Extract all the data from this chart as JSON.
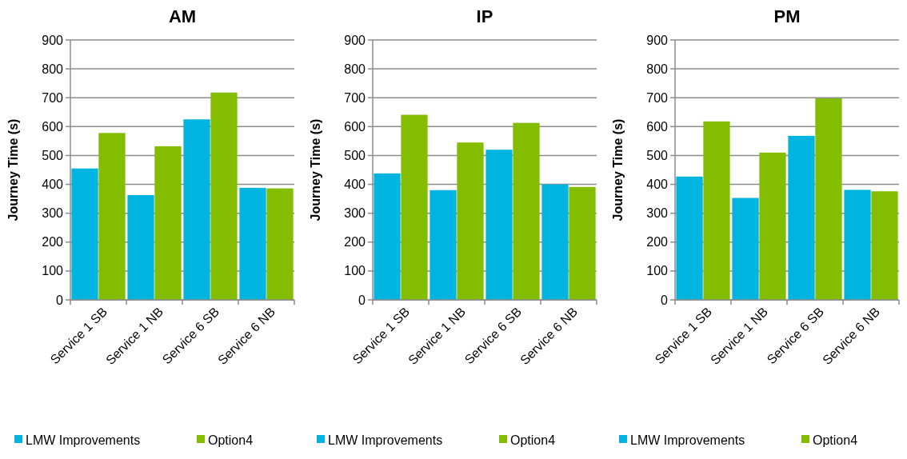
{
  "chart_data": [
    {
      "type": "bar",
      "title": "AM",
      "ylabel": "Journey Time (s)",
      "categories": [
        "Service 1 SB",
        "Service 1 NB",
        "Service 6 SB",
        "Service 6 NB"
      ],
      "series": [
        {
          "name": "LMW Improvements",
          "color": "#00b4e0",
          "values": [
            455,
            363,
            625,
            388
          ]
        },
        {
          "name": "Option4",
          "color": "#84bc00",
          "values": [
            578,
            532,
            718,
            386
          ]
        }
      ],
      "ylim": [
        0,
        900
      ],
      "yticks": [
        0,
        100,
        200,
        300,
        400,
        500,
        600,
        700,
        800,
        900
      ],
      "grid": "y",
      "legend": "bottom"
    },
    {
      "type": "bar",
      "title": "IP",
      "ylabel": "Journey Time (s)",
      "categories": [
        "Service 1 SB",
        "Service 1 NB",
        "Service 6 SB",
        "Service 6 NB"
      ],
      "series": [
        {
          "name": "LMW Improvements",
          "color": "#00b4e0",
          "values": [
            438,
            380,
            520,
            400
          ]
        },
        {
          "name": "Option4",
          "color": "#84bc00",
          "values": [
            641,
            545,
            613,
            391
          ]
        }
      ],
      "ylim": [
        0,
        900
      ],
      "yticks": [
        0,
        100,
        200,
        300,
        400,
        500,
        600,
        700,
        800,
        900
      ],
      "grid": "y",
      "legend": "bottom"
    },
    {
      "type": "bar",
      "title": "PM",
      "ylabel": "Journey Time (s)",
      "categories": [
        "Service 1 SB",
        "Service 1 NB",
        "Service 6 SB",
        "Service 6 NB"
      ],
      "series": [
        {
          "name": "LMW Improvements",
          "color": "#00b4e0",
          "values": [
            427,
            353,
            568,
            381
          ]
        },
        {
          "name": "Option4",
          "color": "#84bc00",
          "values": [
            618,
            510,
            698,
            376
          ]
        }
      ],
      "ylim": [
        0,
        900
      ],
      "yticks": [
        0,
        100,
        200,
        300,
        400,
        500,
        600,
        700,
        800,
        900
      ],
      "grid": "y",
      "legend": "bottom"
    }
  ]
}
